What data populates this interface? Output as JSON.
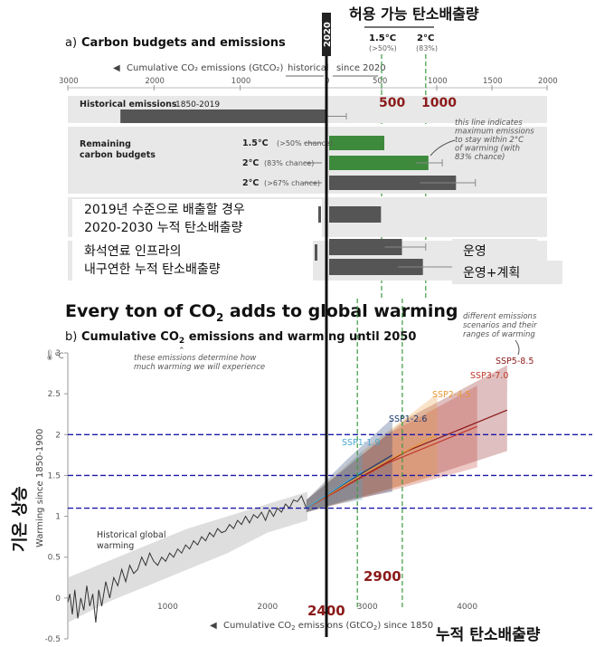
{
  "overlay": {
    "korean_title": "허용 가능 탄소배출량",
    "year_label": "2020",
    "value_500": "500",
    "value_1000": "1000",
    "value_2900": "2900",
    "value_2400": "2400",
    "korean_ylabel": "기온 상승",
    "korean_xlabel": "누적 탄소배출량",
    "scenario_2019": [
      "2019년 수준으로 배출할 경우",
      "2020-2030 누적 탄소배출량"
    ],
    "scenario_fossil": [
      "화석연료 인프라의",
      "내구연한 누적 탄소배출량"
    ],
    "label_operation": "운영",
    "label_operation_plus": "운영+계획"
  },
  "headline": {
    "part1": "Every ton of CO",
    "sub": "2",
    "part2": " adds to global warming"
  },
  "colors": {
    "green": "#3e8a3d",
    "gray_bar": "#555555",
    "dark_red": "#8b1a1a",
    "blue_dash": "#1a1aa8",
    "green_dash": "#3d9a3d",
    "ssp119": "#4aa8d0",
    "ssp126": "#1c3a6e",
    "ssp245": "#e69a3a",
    "ssp370": "#c0392b",
    "ssp585": "#8b1a1a"
  },
  "chart_data": [
    {
      "id": "a",
      "type": "bar",
      "panel_label": "a)",
      "title": "Carbon budgets and emissions",
      "xlabel": "Cumulative CO₂ emissions (GtCO₂)",
      "historical_label": "historical",
      "since_label": "since 2020",
      "xlim_historical": [
        3000,
        0
      ],
      "xlim_since": [
        0,
        2000
      ],
      "historical_ticks": [
        3000,
        2000,
        1000,
        0
      ],
      "since_ticks": [
        500,
        1000,
        1500,
        2000
      ],
      "limit_labels": [
        {
          "name": "1.5°C",
          "note": "(>50%)",
          "value": 500
        },
        {
          "name": "2°C",
          "note": "(83%)",
          "value": 900
        }
      ],
      "historical_bar": {
        "label": "Historical emissions",
        "period": "1850-2019",
        "value": 2390,
        "err": [
          2150,
          2600
        ]
      },
      "remaining_label": [
        "Remaining",
        "carbon budgets"
      ],
      "budgets": [
        {
          "label": "1.5°C",
          "note": "(>50% chance)",
          "value": 500,
          "color": "#3e8a3d"
        },
        {
          "label": "2°C",
          "note": "(83% chance)",
          "value": 900,
          "err": [
            810,
            1050
          ],
          "color": "#3e8a3d"
        },
        {
          "label": "2°C",
          "note": "(>67% chance)",
          "value": 1150,
          "err": [
            850,
            1350
          ],
          "color": "#555555"
        }
      ],
      "scenario_bars": [
        {
          "value": 470
        },
        {
          "value": 660,
          "err": [
            530,
            900
          ]
        },
        {
          "value": 850,
          "err": [
            650,
            1150
          ]
        }
      ],
      "annotation": [
        "this line indicates",
        "maximum emissions",
        "to stay within 2°C",
        "of warming (with",
        "83% chance)"
      ]
    },
    {
      "id": "b",
      "type": "line",
      "panel_label": "b)",
      "title_parts": [
        "Cumulative CO",
        "2",
        " emissions and warming until 2050"
      ],
      "xlabel_parts": [
        "Cumulative CO",
        "2",
        " emissions (GtCO",
        "2",
        ") since 1850"
      ],
      "ylabel": "Warming since 1850-1900",
      "yunit": "°C",
      "xlim": [
        0,
        4800
      ],
      "ylim": [
        -0.5,
        3
      ],
      "xticks": [
        1000,
        2000,
        3000,
        4000
      ],
      "yticks": [
        -0.5,
        0,
        0.5,
        1,
        1.5,
        2,
        2.5,
        3
      ],
      "historical_label": [
        "Historical global",
        "warming"
      ],
      "annotation_top": [
        "these emissions determine how",
        "much warming we will experience"
      ],
      "annotation_right": [
        "different emissions",
        "scenarios and their",
        "ranges of warming"
      ],
      "horizontal_refs": [
        1.1,
        1.5,
        2.0
      ],
      "vertical_refs": [
        2400,
        2900,
        3350
      ],
      "historical_series": {
        "x": [
          0,
          20,
          45,
          70,
          100,
          130,
          160,
          190,
          220,
          250,
          280,
          310,
          340,
          380,
          420,
          460,
          500,
          540,
          580,
          620,
          660,
          700,
          740,
          780,
          820,
          860,
          900,
          940,
          980,
          1020,
          1060,
          1100,
          1140,
          1180,
          1220,
          1260,
          1300,
          1340,
          1380,
          1420,
          1460,
          1500,
          1540,
          1580,
          1620,
          1660,
          1700,
          1740,
          1780,
          1820,
          1860,
          1900,
          1940,
          1980,
          2020,
          2060,
          2100,
          2140,
          2180,
          2220,
          2260,
          2300,
          2340,
          2390
        ],
        "y": [
          -0.05,
          0.05,
          -0.2,
          0.1,
          -0.25,
          0.0,
          -0.15,
          0.15,
          -0.1,
          0.05,
          -0.3,
          0.1,
          -0.1,
          0.2,
          0.0,
          0.25,
          0.15,
          0.35,
          0.2,
          0.4,
          0.3,
          0.35,
          0.5,
          0.4,
          0.55,
          0.45,
          0.4,
          0.5,
          0.45,
          0.55,
          0.5,
          0.6,
          0.55,
          0.65,
          0.6,
          0.7,
          0.65,
          0.75,
          0.7,
          0.8,
          0.75,
          0.85,
          0.8,
          0.82,
          0.9,
          0.85,
          0.95,
          0.9,
          1.0,
          0.92,
          1.02,
          0.98,
          1.05,
          0.95,
          1.08,
          1.0,
          1.1,
          1.05,
          1.15,
          1.1,
          1.2,
          1.18,
          1.25,
          1.1
        ]
      },
      "historical_band": {
        "x": [
          0,
          400,
          800,
          1200,
          1600,
          2000,
          2400
        ],
        "low": [
          -0.3,
          -0.05,
          0.15,
          0.35,
          0.55,
          0.8,
          0.95
        ],
        "high": [
          0.25,
          0.45,
          0.65,
          0.85,
          1.0,
          1.15,
          1.3
        ]
      },
      "series": [
        {
          "name": "SSP1-1.9",
          "x": [
            2390,
            2700,
            2950
          ],
          "y": [
            1.1,
            1.35,
            1.55
          ],
          "low": [
            1.05,
            1.15,
            1.2
          ],
          "high": [
            1.2,
            1.5,
            1.8
          ],
          "color": "#4aa8d0"
        },
        {
          "name": "SSP1-2.6",
          "x": [
            2390,
            2800,
            3250
          ],
          "y": [
            1.1,
            1.42,
            1.75
          ],
          "low": [
            1.05,
            1.2,
            1.3
          ],
          "high": [
            1.2,
            1.7,
            2.2
          ],
          "color": "#1c3a6e"
        },
        {
          "name": "SSP2-4.5",
          "x": [
            2390,
            3000,
            3700
          ],
          "y": [
            1.1,
            1.55,
            2.0
          ],
          "low": [
            1.05,
            1.25,
            1.5
          ],
          "high": [
            1.2,
            1.85,
            2.5
          ],
          "color": "#e69a3a"
        },
        {
          "name": "SSP3-7.0",
          "x": [
            2390,
            3200,
            4100
          ],
          "y": [
            1.1,
            1.65,
            2.1
          ],
          "low": [
            1.05,
            1.3,
            1.6
          ],
          "high": [
            1.2,
            2.0,
            2.6
          ],
          "color": "#c0392b"
        },
        {
          "name": "SSP5-8.5",
          "x": [
            2390,
            3400,
            4400
          ],
          "y": [
            1.1,
            1.8,
            2.3
          ],
          "low": [
            1.05,
            1.4,
            1.8
          ],
          "high": [
            1.2,
            2.2,
            2.85
          ],
          "color": "#8b1a1a"
        }
      ]
    }
  ]
}
